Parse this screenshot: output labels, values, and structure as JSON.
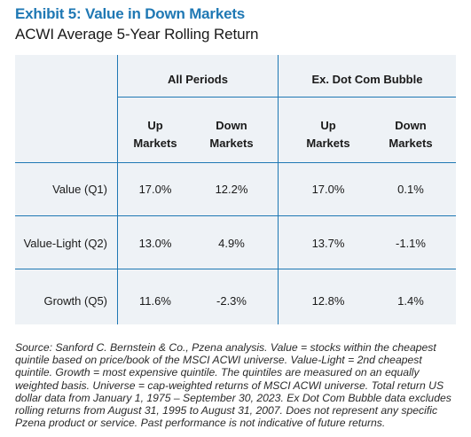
{
  "exhibit": {
    "title": "Exhibit 5: Value in Down Markets",
    "subtitle": "ACWI Average 5-Year Rolling Return"
  },
  "table": {
    "group_headers": [
      "All Periods",
      "Ex. Dot Com Bubble"
    ],
    "col_headers": [
      [
        "Up",
        "Markets"
      ],
      [
        "Down",
        "Markets"
      ],
      [
        "Up",
        "Markets"
      ],
      [
        "Down",
        "Markets"
      ]
    ],
    "rows": [
      {
        "label": "Value (Q1)",
        "values": [
          "17.0%",
          "12.2%",
          "17.0%",
          "0.1%"
        ]
      },
      {
        "label": "Value-Light (Q2)",
        "values": [
          "13.0%",
          "4.9%",
          "13.7%",
          "-1.1%"
        ]
      },
      {
        "label": "Growth (Q5)",
        "values": [
          "11.6%",
          "-2.3%",
          "12.8%",
          "1.4%"
        ]
      }
    ]
  },
  "footnote": "Source: Sanford C. Bernstein & Co., Pzena analysis. Value = stocks within the cheapest quintile based on price/book of the MSCI ACWI universe. Value-Light = 2nd cheapest quintile. Growth = most expensive quintile. The quintiles are measured on an equally weighted basis. Universe = cap-weighted returns of MSCI ACWI universe. Total return US dollar data from January 1, 1975 – September 30, 2023. Ex Dot Com Bubble data excludes rolling returns from August 31, 1995 to August 31, 2007. Does not represent any specific Pzena product or service. Past performance is not indicative of future returns.",
  "colors": {
    "accent": "#1f78b4",
    "table_bg": "#eef2f6"
  }
}
